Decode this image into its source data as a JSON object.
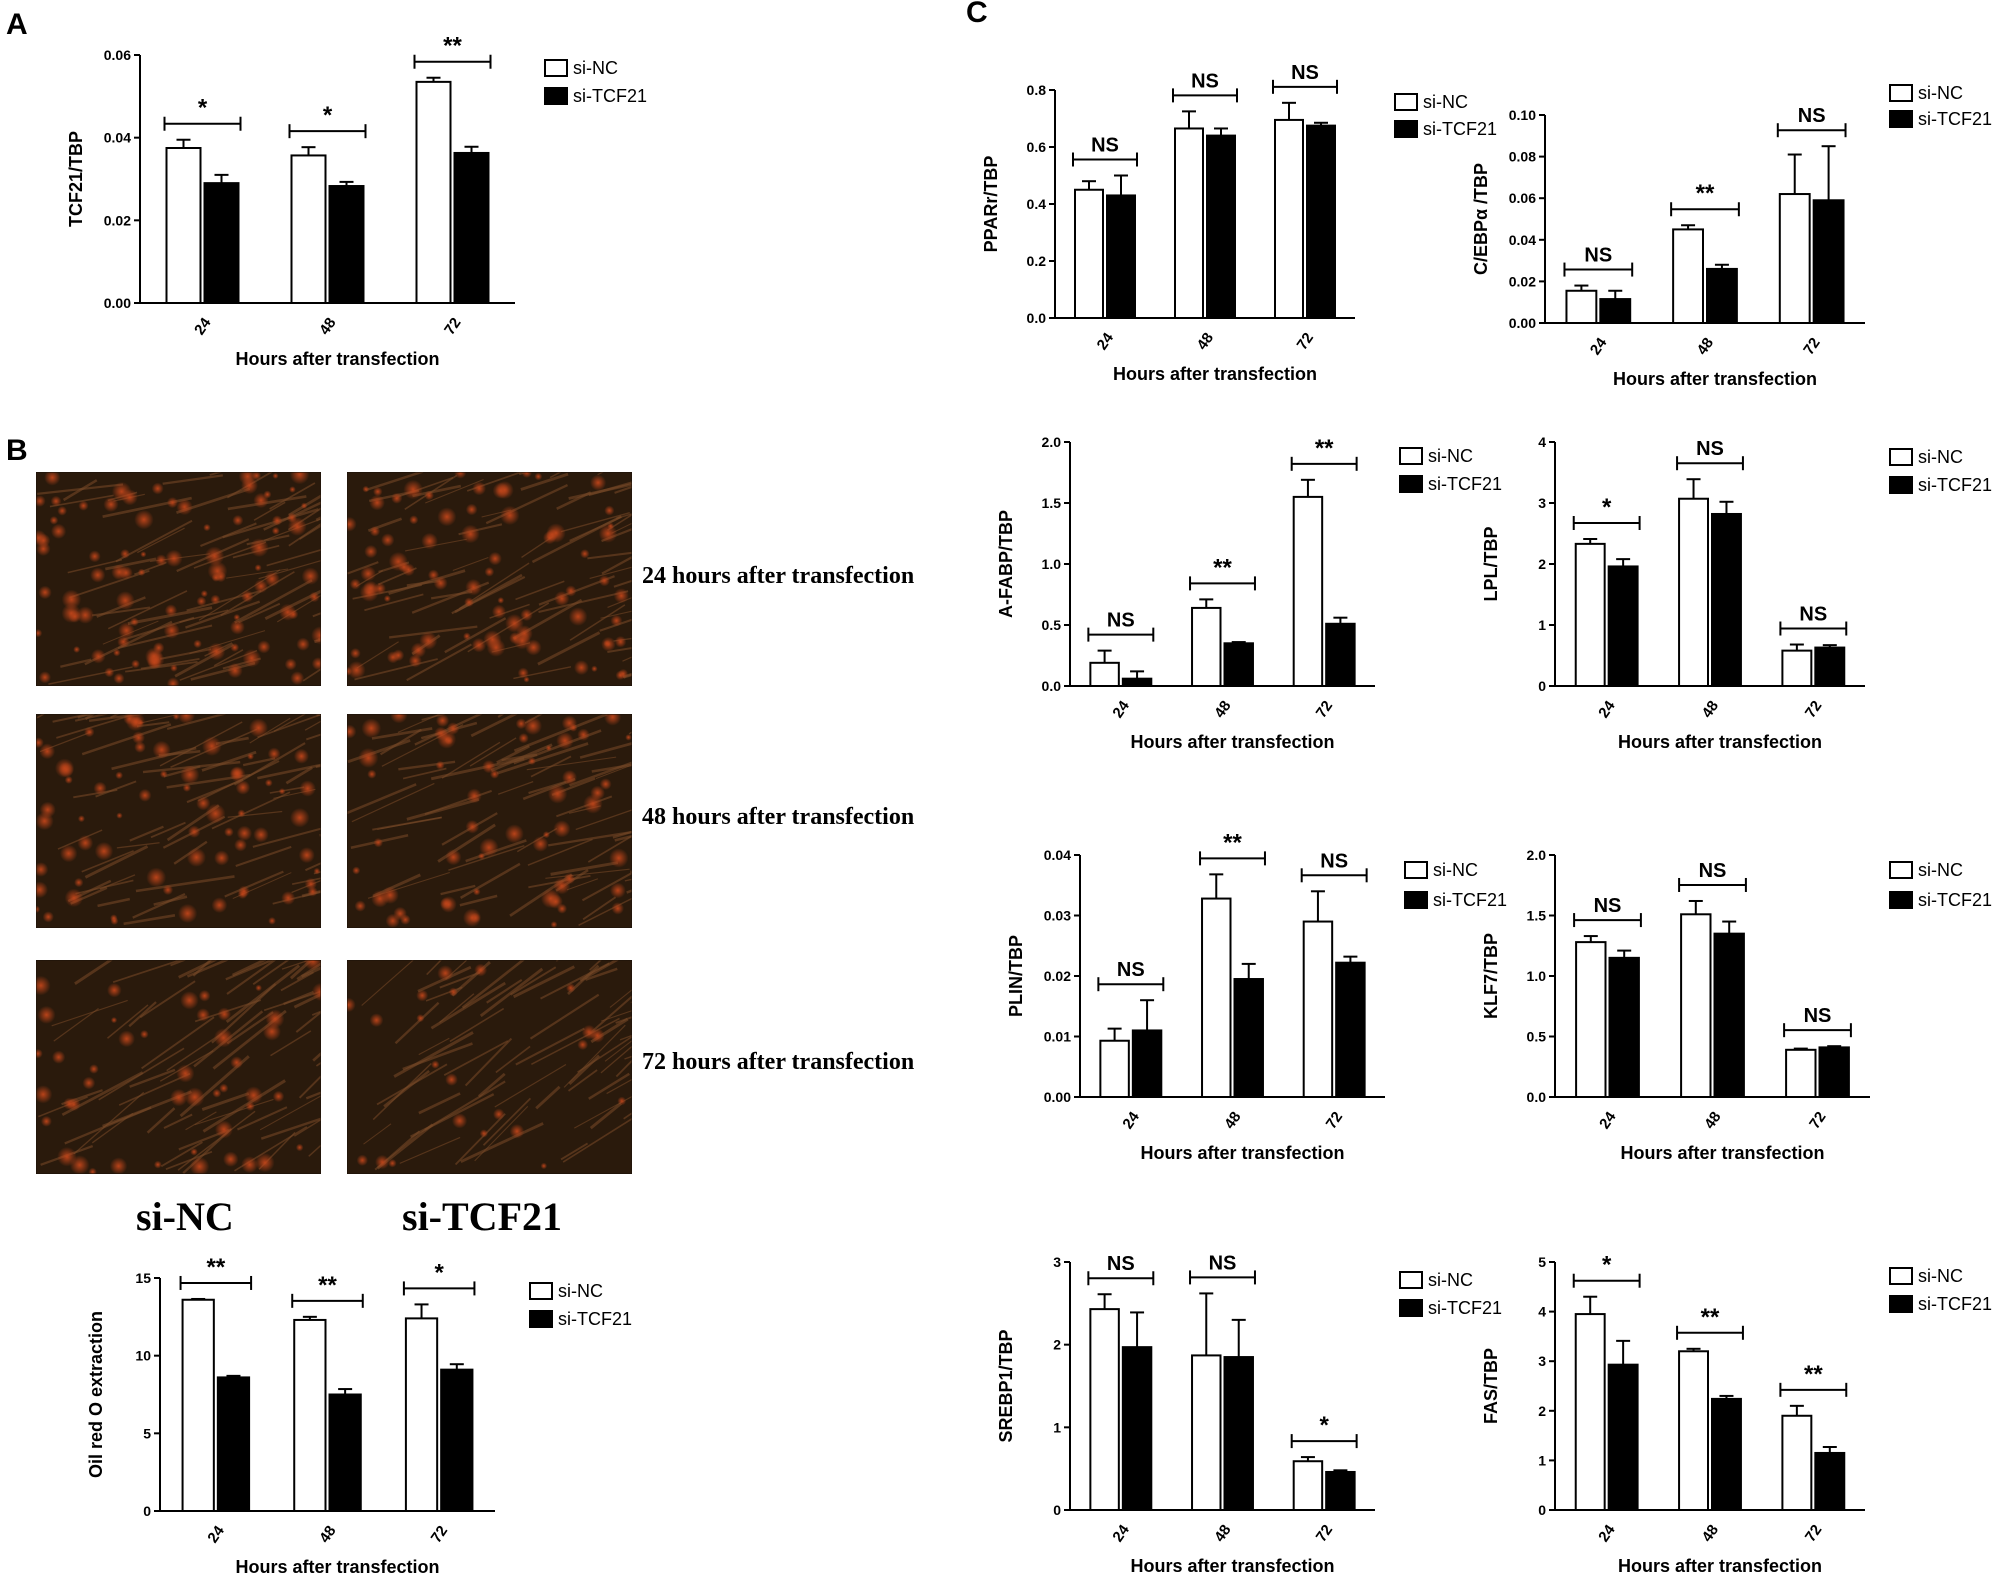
{
  "panels": {
    "A": "A",
    "B": "B",
    "C": "C"
  },
  "legend": {
    "nc": "si-NC",
    "kd": "si-TCF21"
  },
  "photos": {
    "rows": [
      "24 hours  after transfection",
      "48 hours  after transfection",
      "72 hours  after transfection"
    ],
    "groups": [
      "si-NC",
      "si-TCF21"
    ],
    "colors": {
      "dark": "#2a1a0c",
      "stain": "#c0451a",
      "fiber": "#7a4a28"
    }
  },
  "colors": {
    "nc_fill": "#ffffff",
    "kd_fill": "#000000",
    "stroke": "#000000"
  },
  "chart_data": [
    {
      "id": "tcf21",
      "type": "bar",
      "categories": [
        "24",
        "48",
        "72"
      ],
      "xlabel": "Hours after transfection",
      "ylabel": "TCF21/TBP",
      "ylim": [
        0,
        0.06
      ],
      "yticks": [
        "0.00",
        "0.02",
        "0.04",
        "0.06"
      ],
      "series": [
        {
          "name": "si-NC",
          "values": [
            0.0375,
            0.0357,
            0.0535
          ],
          "errors": [
            0.002,
            0.002,
            0.001
          ]
        },
        {
          "name": "si-TCF21",
          "values": [
            0.029,
            0.0283,
            0.0363
          ],
          "errors": [
            0.002,
            0.001,
            0.0015
          ]
        }
      ],
      "significance": [
        "*",
        "*",
        "**"
      ]
    },
    {
      "id": "oilred",
      "type": "bar",
      "categories": [
        "24",
        "48",
        "72"
      ],
      "xlabel": "Hours after transfection",
      "ylabel": "Oil red O extraction",
      "ylim": [
        0,
        15
      ],
      "yticks": [
        "0",
        "5",
        "10",
        "15"
      ],
      "series": [
        {
          "name": "si-NC",
          "values": [
            13.6,
            12.3,
            12.4
          ],
          "errors": [
            0.05,
            0.2,
            0.9
          ]
        },
        {
          "name": "si-TCF21",
          "values": [
            8.6,
            7.5,
            9.1
          ],
          "errors": [
            0.1,
            0.35,
            0.35
          ]
        }
      ],
      "significance": [
        "**",
        "**",
        "*"
      ]
    },
    {
      "id": "ppar",
      "type": "bar",
      "categories": [
        "24",
        "48",
        "72"
      ],
      "xlabel": "Hours after transfection",
      "ylabel": "PPARr/TBP",
      "ylim": [
        0,
        0.8
      ],
      "yticks": [
        "0.0",
        "0.2",
        "0.4",
        "0.6",
        "0.8"
      ],
      "series": [
        {
          "name": "si-NC",
          "values": [
            0.45,
            0.665,
            0.695
          ],
          "errors": [
            0.03,
            0.06,
            0.06
          ]
        },
        {
          "name": "si-TCF21",
          "values": [
            0.43,
            0.64,
            0.675
          ],
          "errors": [
            0.07,
            0.025,
            0.01
          ]
        }
      ],
      "significance": [
        "NS",
        "NS",
        "NS"
      ]
    },
    {
      "id": "cebpa",
      "type": "bar",
      "categories": [
        "24",
        "48",
        "72"
      ],
      "xlabel": "Hours after transfection",
      "ylabel": "C/EBPα /TBP",
      "ylim": [
        0,
        0.1
      ],
      "yticks": [
        "0.00",
        "0.02",
        "0.04",
        "0.06",
        "0.08",
        "0.10"
      ],
      "series": [
        {
          "name": "si-NC",
          "values": [
            0.0155,
            0.045,
            0.062
          ],
          "errors": [
            0.0025,
            0.002,
            0.019
          ]
        },
        {
          "name": "si-TCF21",
          "values": [
            0.0115,
            0.026,
            0.059
          ],
          "errors": [
            0.004,
            0.002,
            0.026
          ]
        }
      ],
      "significance": [
        "NS",
        "**",
        "NS"
      ]
    },
    {
      "id": "afabp",
      "type": "bar",
      "categories": [
        "24",
        "48",
        "72"
      ],
      "xlabel": "Hours after transfection",
      "ylabel": "A-FABP/TBP",
      "ylim": [
        0,
        2.0
      ],
      "yticks": [
        "0.0",
        "0.5",
        "1.0",
        "1.5",
        "2.0"
      ],
      "series": [
        {
          "name": "si-NC",
          "values": [
            0.19,
            0.64,
            1.55
          ],
          "errors": [
            0.1,
            0.07,
            0.14
          ]
        },
        {
          "name": "si-TCF21",
          "values": [
            0.06,
            0.35,
            0.51
          ],
          "errors": [
            0.06,
            0.01,
            0.05
          ]
        }
      ],
      "significance": [
        "NS",
        "**",
        "**"
      ]
    },
    {
      "id": "lpl",
      "type": "bar",
      "categories": [
        "24",
        "48",
        "72"
      ],
      "xlabel": "Hours after transfection",
      "ylabel": "LPL/TBP",
      "ylim": [
        0,
        4
      ],
      "yticks": [
        "0",
        "1",
        "2",
        "3",
        "4"
      ],
      "series": [
        {
          "name": "si-NC",
          "values": [
            2.33,
            3.07,
            0.58
          ],
          "errors": [
            0.08,
            0.32,
            0.1
          ]
        },
        {
          "name": "si-TCF21",
          "values": [
            1.96,
            2.82,
            0.63
          ],
          "errors": [
            0.12,
            0.2,
            0.04
          ]
        }
      ],
      "significance": [
        "*",
        "NS",
        "NS"
      ]
    },
    {
      "id": "plin",
      "type": "bar",
      "categories": [
        "24",
        "48",
        "72"
      ],
      "xlabel": "Hours after transfection",
      "ylabel": "PLIN/TBP",
      "ylim": [
        0,
        0.04
      ],
      "yticks": [
        "0.00",
        "0.01",
        "0.02",
        "0.03",
        "0.04"
      ],
      "series": [
        {
          "name": "si-NC",
          "values": [
            0.0093,
            0.0328,
            0.029
          ],
          "errors": [
            0.002,
            0.004,
            0.005
          ]
        },
        {
          "name": "si-TCF21",
          "values": [
            0.011,
            0.0195,
            0.0222
          ],
          "errors": [
            0.005,
            0.0025,
            0.001
          ]
        }
      ],
      "significance": [
        "NS",
        "**",
        "NS"
      ]
    },
    {
      "id": "klf7",
      "type": "bar",
      "categories": [
        "24",
        "48",
        "72"
      ],
      "xlabel": "Hours after transfection",
      "ylabel": "KLF7/TBP",
      "ylim": [
        0,
        2.0
      ],
      "yticks": [
        "0.0",
        "0.5",
        "1.0",
        "1.5",
        "2.0"
      ],
      "series": [
        {
          "name": "si-NC",
          "values": [
            1.28,
            1.51,
            0.39
          ],
          "errors": [
            0.05,
            0.11,
            0.01
          ]
        },
        {
          "name": "si-TCF21",
          "values": [
            1.15,
            1.35,
            0.41
          ],
          "errors": [
            0.06,
            0.1,
            0.01
          ]
        }
      ],
      "significance": [
        "NS",
        "NS",
        "NS"
      ]
    },
    {
      "id": "srebp1",
      "type": "bar",
      "categories": [
        "24",
        "48",
        "72"
      ],
      "xlabel": "Hours after transfection",
      "ylabel": "SREBP1/TBP",
      "ylim": [
        0,
        3
      ],
      "yticks": [
        "0",
        "1",
        "2",
        "3"
      ],
      "series": [
        {
          "name": "si-NC",
          "values": [
            2.43,
            1.87,
            0.59
          ],
          "errors": [
            0.18,
            0.75,
            0.05
          ]
        },
        {
          "name": "si-TCF21",
          "values": [
            1.97,
            1.85,
            0.46
          ],
          "errors": [
            0.42,
            0.45,
            0.02
          ]
        }
      ],
      "significance": [
        "NS",
        "NS",
        "*"
      ]
    },
    {
      "id": "fas",
      "type": "bar",
      "categories": [
        "24",
        "48",
        "72"
      ],
      "xlabel": "Hours after transfection",
      "ylabel": "FAS/TBP",
      "ylim": [
        0,
        5
      ],
      "yticks": [
        "0",
        "1",
        "2",
        "3",
        "4",
        "5"
      ],
      "series": [
        {
          "name": "si-NC",
          "values": [
            3.95,
            3.2,
            1.9
          ],
          "errors": [
            0.35,
            0.05,
            0.2
          ]
        },
        {
          "name": "si-TCF21",
          "values": [
            2.93,
            2.24,
            1.15
          ],
          "errors": [
            0.48,
            0.06,
            0.12
          ]
        }
      ],
      "significance": [
        "*",
        "**",
        "**"
      ]
    }
  ]
}
